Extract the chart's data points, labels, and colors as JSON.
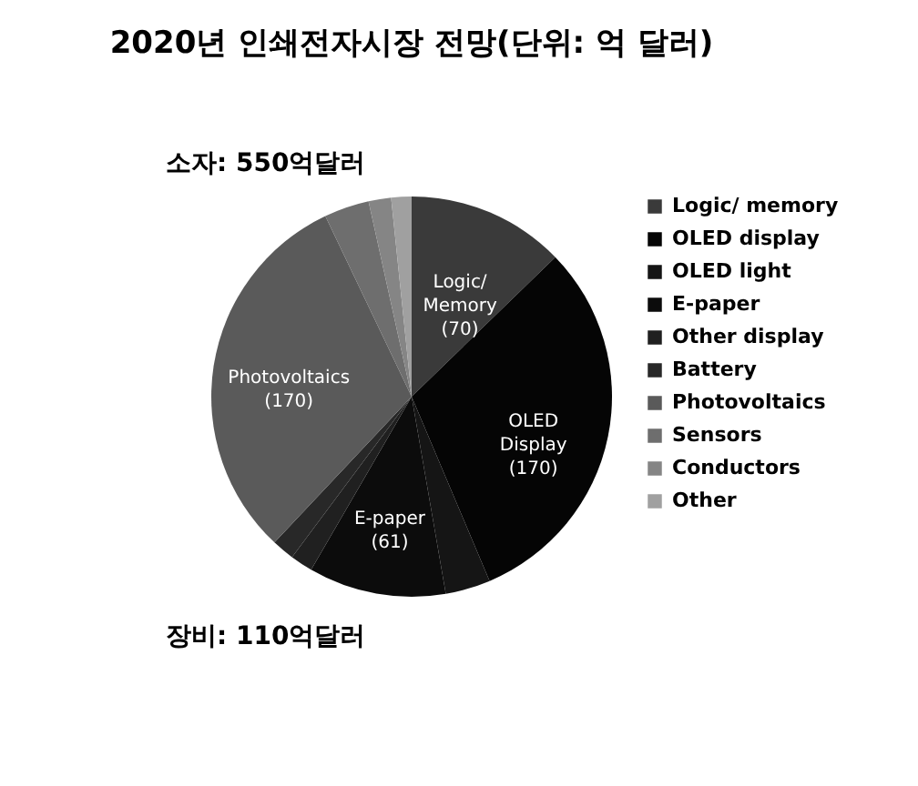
{
  "chart_data": {
    "type": "pie",
    "title": "2020년 인쇄전자시장 전망(단위: 억 달러)",
    "categories": [
      "Logic/ memory",
      "OLED display",
      "OLED light",
      "E-paper",
      "Other display",
      "Battery",
      "Photovoltaics",
      "Sensors",
      "Conductors",
      "Other"
    ],
    "values": [
      70,
      170,
      20,
      61,
      10,
      10,
      170,
      20,
      10,
      9
    ],
    "colors": [
      "#3a3a3a",
      "#050505",
      "#151515",
      "#0c0c0c",
      "#202020",
      "#282828",
      "#5a5a5a",
      "#6e6e6e",
      "#858585",
      "#a0a0a0"
    ],
    "value_labels": [
      "Logic/\nMemory\n(70)",
      "OLED\nDisplay\n(170)",
      null,
      "E-paper\n(61)",
      null,
      null,
      "Photovoltaics\n(170)",
      null,
      null,
      null
    ],
    "annotations": [
      "소자: 550억달러",
      "장비: 110억달러"
    ],
    "legend": "right"
  }
}
